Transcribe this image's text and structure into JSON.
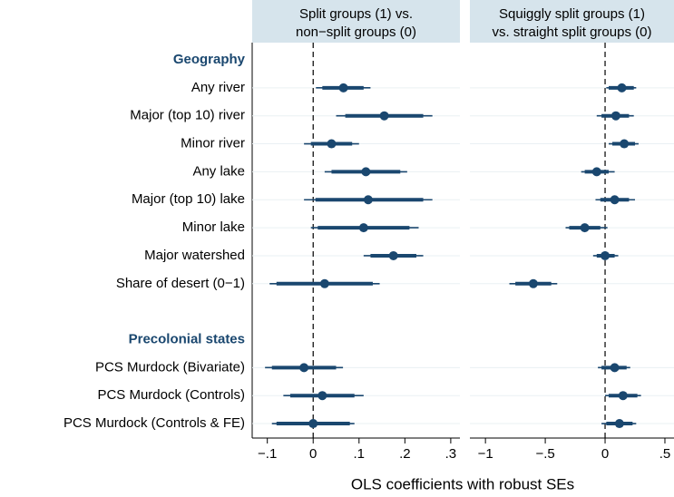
{
  "chart_data": {
    "type": "coefplot",
    "xlabel": "OLS coefficients with robust SEs",
    "color": "#1a476f",
    "header_color": "#1a476f",
    "title_fill": "#d6e4ec",
    "grid": true,
    "xline": 0,
    "groups": [
      {
        "name": "Geography",
        "categories": [
          "Any river",
          "Major (top 10) river",
          "Minor river",
          "Any lake",
          "Major (top 10) lake",
          "Minor lake",
          "Major watershed",
          "Share of desert (0−1)"
        ]
      },
      {
        "name": "Precolonial states",
        "categories": [
          "PCS Murdock (Bivariate)",
          "PCS Murdock (Controls)",
          "PCS Murdock (Controls & FE)"
        ]
      }
    ],
    "panels": [
      {
        "title": [
          "Split groups (1) vs.",
          "non−split groups (0)"
        ],
        "xlim": [
          -0.133,
          0.32
        ],
        "xticks": [
          {
            "value": -0.1,
            "label": "−.1"
          },
          0,
          {
            "value": 0.1,
            "label": ".1"
          },
          {
            "value": 0.2,
            "label": ".2"
          },
          {
            "value": 0.3,
            "label": ".3"
          }
        ],
        "groups": [
          {
            "values": [
              0.066,
              0.155,
              0.04,
              0.115,
              0.12,
              0.11,
              0.175,
              0.025
            ],
            "ci_thick": [
              [
                0.02,
                0.11
              ],
              [
                0.07,
                0.24
              ],
              [
                -0.005,
                0.085
              ],
              [
                0.04,
                0.19
              ],
              [
                0.005,
                0.24
              ],
              [
                0.01,
                0.21
              ],
              [
                0.125,
                0.225
              ],
              [
                -0.08,
                0.13
              ]
            ],
            "ci_thin": [
              [
                0.006,
                0.125
              ],
              [
                0.05,
                0.26
              ],
              [
                -0.02,
                0.1
              ],
              [
                0.025,
                0.205
              ],
              [
                -0.02,
                0.26
              ],
              [
                -0.005,
                0.23
              ],
              [
                0.11,
                0.24
              ],
              [
                -0.095,
                0.145
              ]
            ]
          },
          {
            "values": [
              -0.02,
              0.02,
              0.0
            ],
            "ci_thick": [
              [
                -0.09,
                0.05
              ],
              [
                -0.05,
                0.09
              ],
              [
                -0.08,
                0.08
              ]
            ],
            "ci_thin": [
              [
                -0.105,
                0.065
              ],
              [
                -0.065,
                0.11
              ],
              [
                -0.09,
                0.09
              ]
            ]
          }
        ]
      },
      {
        "title": [
          "Squiggly split groups (1)",
          "vs. straight split groups (0)"
        ],
        "xlim": [
          -1.13,
          0.576
        ],
        "xticks": [
          {
            "value": -1,
            "label": "−1"
          },
          {
            "value": -0.5,
            "label": "−.5"
          },
          0,
          {
            "value": 0.5,
            "label": ".5"
          }
        ],
        "groups": [
          {
            "values": [
              0.14,
              0.09,
              0.16,
              -0.07,
              0.08,
              -0.17,
              0.0,
              -0.6
            ],
            "ci_thick": [
              [
                0.03,
                0.24
              ],
              [
                -0.03,
                0.2
              ],
              [
                0.06,
                0.25
              ],
              [
                -0.17,
                0.03
              ],
              [
                -0.04,
                0.2
              ],
              [
                -0.3,
                -0.04
              ],
              [
                -0.07,
                0.08
              ],
              [
                -0.75,
                -0.45
              ]
            ],
            "ci_thin": [
              [
                0.01,
                0.26
              ],
              [
                -0.07,
                0.24
              ],
              [
                0.03,
                0.28
              ],
              [
                -0.2,
                0.08
              ],
              [
                -0.08,
                0.25
              ],
              [
                -0.33,
                0.02
              ],
              [
                -0.1,
                0.11
              ],
              [
                -0.8,
                -0.4
              ]
            ]
          },
          {
            "values": [
              0.08,
              0.15,
              0.12
            ],
            "ci_thick": [
              [
                -0.03,
                0.18
              ],
              [
                0.03,
                0.27
              ],
              [
                0.01,
                0.23
              ]
            ],
            "ci_thin": [
              [
                -0.06,
                0.21
              ],
              [
                0,
                0.3
              ],
              [
                -0.03,
                0.26
              ]
            ]
          }
        ]
      }
    ]
  }
}
